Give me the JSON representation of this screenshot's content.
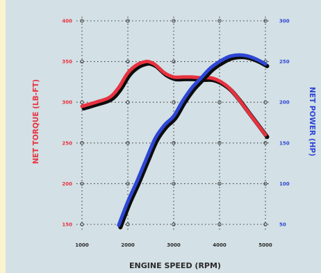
{
  "chart_data": {
    "type": "line",
    "title": "",
    "xlabel": "ENGINE SPEED (RPM)",
    "ylabel_left": "NET TORQUE (LB-FT)",
    "ylabel_right": "NET POWER (HP)",
    "x_ticks": [
      "1000",
      "2000",
      "3000",
      "4000",
      "5000"
    ],
    "xlim": [
      1000,
      5000
    ],
    "y_left_ticks": [
      "150",
      "200",
      "250",
      "300",
      "350",
      "400"
    ],
    "y_left_lim": [
      150,
      400
    ],
    "y_right_ticks": [
      "50",
      "100",
      "150",
      "200",
      "250",
      "300"
    ],
    "y_right_lim": [
      50,
      300
    ],
    "grid": true,
    "series": [
      {
        "axis": "left",
        "color": "#e8323f",
        "x": [
          1000,
          1300,
          1600,
          1800,
          2000,
          2200,
          2400,
          2500,
          2600,
          2800,
          3000,
          3200,
          3400,
          3600,
          3800,
          4000,
          4200,
          4400,
          4600,
          4800,
          5000
        ],
        "values": [
          295,
          300,
          306,
          318,
          336,
          346,
          350,
          349,
          346,
          336,
          331,
          331,
          331,
          330,
          330,
          326,
          318,
          305,
          290,
          275,
          260
        ]
      },
      {
        "axis": "right",
        "color": "#2e46d6",
        "x": [
          1800,
          2000,
          2200,
          2400,
          2600,
          2800,
          3000,
          3200,
          3400,
          3600,
          3800,
          4000,
          4200,
          4400,
          4600,
          4800,
          5000
        ],
        "values": [
          49,
          78,
          103,
          130,
          156,
          172,
          183,
          202,
          218,
          230,
          242,
          250,
          256,
          258,
          257,
          253,
          247
        ]
      }
    ]
  }
}
